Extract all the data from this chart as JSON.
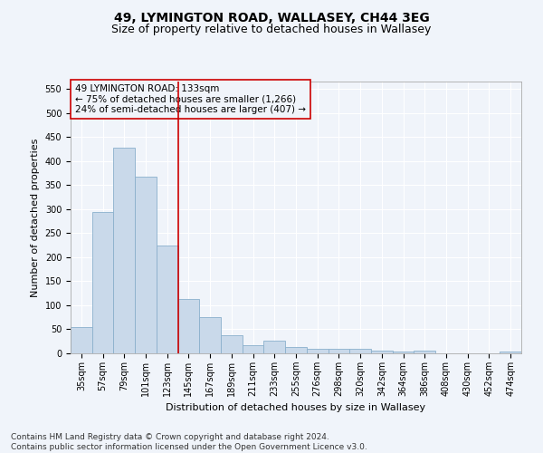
{
  "title1": "49, LYMINGTON ROAD, WALLASEY, CH44 3EG",
  "title2": "Size of property relative to detached houses in Wallasey",
  "xlabel": "Distribution of detached houses by size in Wallasey",
  "ylabel": "Number of detached properties",
  "categories": [
    "35sqm",
    "57sqm",
    "79sqm",
    "101sqm",
    "123sqm",
    "145sqm",
    "167sqm",
    "189sqm",
    "211sqm",
    "233sqm",
    "255sqm",
    "276sqm",
    "298sqm",
    "320sqm",
    "342sqm",
    "364sqm",
    "386sqm",
    "408sqm",
    "430sqm",
    "452sqm",
    "474sqm"
  ],
  "values": [
    55,
    293,
    428,
    368,
    225,
    113,
    76,
    38,
    17,
    27,
    14,
    10,
    10,
    10,
    5,
    4,
    6,
    0,
    0,
    0,
    4
  ],
  "bar_color": "#c9d9ea",
  "bar_edge_color": "#8ab0cc",
  "vline_x": 4.5,
  "annotation_line1": "49 LYMINGTON ROAD: 133sqm",
  "annotation_line2": "← 75% of detached houses are smaller (1,266)",
  "annotation_line3": "24% of semi-detached houses are larger (407) →",
  "vline_color": "#cc0000",
  "ylim": [
    0,
    565
  ],
  "yticks": [
    0,
    50,
    100,
    150,
    200,
    250,
    300,
    350,
    400,
    450,
    500,
    550
  ],
  "footnote1": "Contains HM Land Registry data © Crown copyright and database right 2024.",
  "footnote2": "Contains public sector information licensed under the Open Government Licence v3.0.",
  "background_color": "#f0f4fa",
  "grid_color": "#ffffff",
  "title1_fontsize": 10,
  "title2_fontsize": 9,
  "axis_label_fontsize": 8,
  "tick_fontsize": 7,
  "annotation_fontsize": 7.5,
  "footnote_fontsize": 6.5
}
